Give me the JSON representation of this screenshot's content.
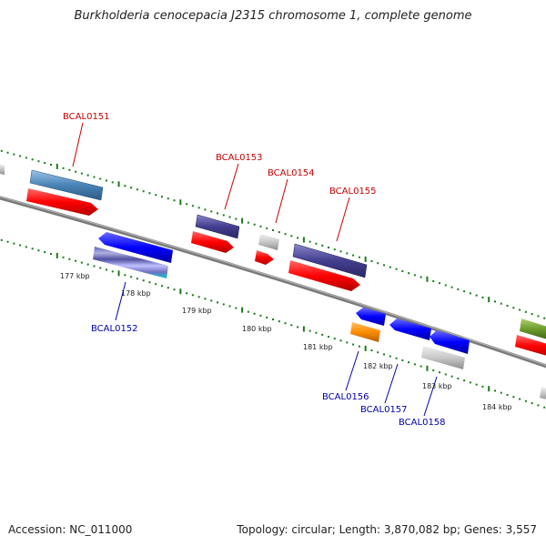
{
  "title": "Burkholderia cenocepacia J2315 chromosome 1, complete genome",
  "footer": {
    "accession": "Accession: NC_011000",
    "summary": "Topology: circular; Length: 3,870,082 bp; Genes: 3,557"
  },
  "scale_labels": [
    "177 kbp",
    "178 kbp",
    "179 kbp",
    "180 kbp",
    "181 kbp",
    "182 kbp",
    "183 kbp",
    "184 kbp"
  ],
  "gene_labels": [
    "BCAL0151",
    "BCAL0153",
    "BCAL0154",
    "BCAL0155",
    "BCAL0152",
    "BCAL0156",
    "BCAL0157",
    "BCAL0158"
  ],
  "colors": {
    "forward_label": "#cc0000",
    "reverse_label": "#0000aa",
    "tick": "#1a7a1a",
    "backbone": "#808080"
  }
}
